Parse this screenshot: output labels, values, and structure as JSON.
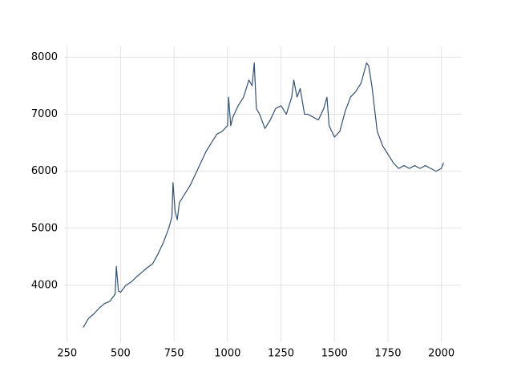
{
  "chart_data": {
    "type": "line",
    "x": [
      325,
      350,
      375,
      400,
      425,
      450,
      475,
      480,
      490,
      500,
      525,
      550,
      575,
      600,
      625,
      650,
      675,
      700,
      725,
      740,
      745,
      755,
      765,
      775,
      800,
      825,
      850,
      875,
      900,
      925,
      950,
      975,
      1000,
      1005,
      1015,
      1025,
      1050,
      1075,
      1100,
      1115,
      1125,
      1135,
      1150,
      1175,
      1200,
      1225,
      1250,
      1275,
      1300,
      1310,
      1325,
      1340,
      1360,
      1375,
      1400,
      1425,
      1450,
      1465,
      1475,
      1500,
      1525,
      1550,
      1575,
      1600,
      1625,
      1650,
      1660,
      1675,
      1700,
      1725,
      1750,
      1775,
      1800,
      1825,
      1850,
      1875,
      1900,
      1925,
      1950,
      1975,
      2000,
      2010
    ],
    "values": [
      3260,
      3420,
      3500,
      3600,
      3680,
      3720,
      3850,
      4330,
      3900,
      3880,
      4000,
      4060,
      4150,
      4230,
      4310,
      4380,
      4550,
      4750,
      5000,
      5200,
      5800,
      5300,
      5150,
      5450,
      5600,
      5750,
      5950,
      6150,
      6350,
      6500,
      6650,
      6700,
      6800,
      7300,
      6800,
      6950,
      7150,
      7300,
      7600,
      7500,
      7900,
      7100,
      7000,
      6750,
      6900,
      7100,
      7150,
      7000,
      7300,
      7600,
      7300,
      7450,
      7000,
      7000,
      6950,
      6900,
      7100,
      7300,
      6800,
      6600,
      6700,
      7050,
      7300,
      7400,
      7550,
      7900,
      7850,
      7500,
      6700,
      6450,
      6300,
      6150,
      6050,
      6100,
      6050,
      6100,
      6050,
      6100,
      6050,
      6000,
      6050,
      6150
    ],
    "color": "#34506f",
    "xlim": [
      236,
      2095
    ],
    "xticks": [
      250,
      500,
      750,
      1000,
      1250,
      1500,
      1750,
      2000
    ],
    "ylim": [
      3001,
      8188
    ],
    "yticks": [
      4000,
      5000,
      6000,
      7000,
      8000
    ],
    "grid": true
  }
}
